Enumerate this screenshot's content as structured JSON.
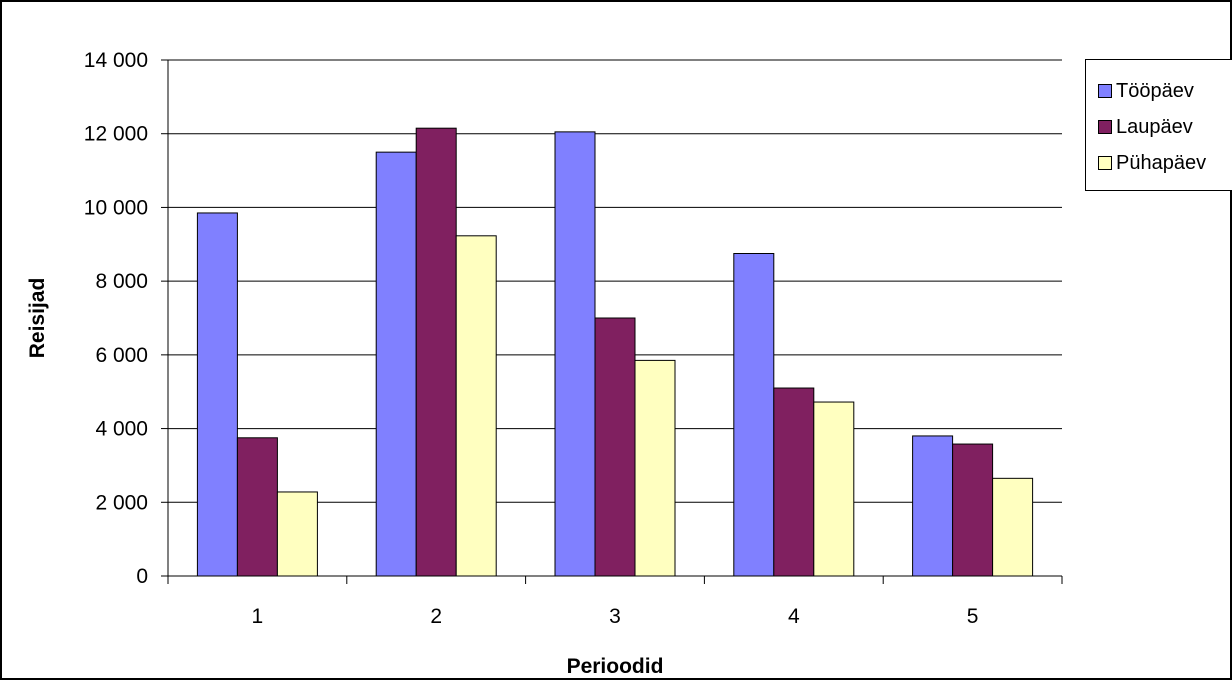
{
  "chart_data": {
    "type": "bar",
    "categories": [
      "1",
      "2",
      "3",
      "4",
      "5"
    ],
    "series": [
      {
        "name": "Tööpäev",
        "color": "#8080ff",
        "values": [
          9850,
          11500,
          12050,
          8750,
          3800
        ]
      },
      {
        "name": "Laupäev",
        "color": "#802060",
        "values": [
          3750,
          12150,
          7000,
          5100,
          3580
        ]
      },
      {
        "name": "Pühapäev",
        "color": "#ffffc0",
        "values": [
          2280,
          9230,
          5850,
          4720,
          2650
        ]
      }
    ],
    "xlabel": "Perioodid",
    "ylabel": "Reisijad",
    "ylim": [
      0,
      14000
    ],
    "yticks": [
      0,
      2000,
      4000,
      6000,
      8000,
      10000,
      12000,
      14000
    ],
    "ytick_labels": [
      "0",
      "2 000",
      "4 000",
      "6 000",
      "8 000",
      "10 000",
      "12 000",
      "14 000"
    ],
    "grid": true,
    "legend_position": "top-right"
  }
}
